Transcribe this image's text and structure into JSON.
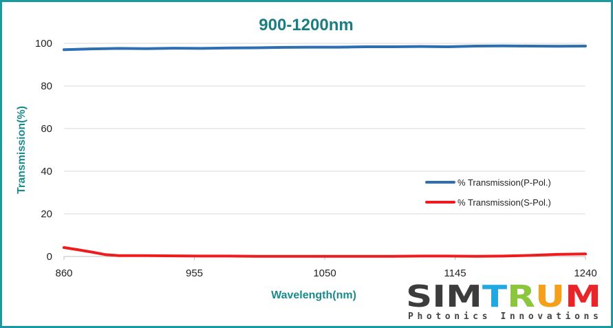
{
  "chart_data": {
    "type": "line",
    "title": "900-1200nm",
    "xlabel": "Wavelength(nm)",
    "ylabel": "Transmission(%)",
    "xlim": [
      860,
      1240
    ],
    "ylim": [
      0,
      100
    ],
    "x_ticks": [
      "860",
      "955",
      "1050",
      "1145",
      "1240"
    ],
    "y_ticks": [
      "0",
      "20",
      "40",
      "60",
      "80",
      "100"
    ],
    "grid": "horizontal",
    "legend_position": "center-right",
    "series": [
      {
        "name": "% Transmission(P-Pol.)",
        "color": "#2e6fb4",
        "points": [
          [
            860,
            97.0
          ],
          [
            880,
            97.4
          ],
          [
            900,
            97.6
          ],
          [
            920,
            97.5
          ],
          [
            940,
            97.7
          ],
          [
            960,
            97.6
          ],
          [
            980,
            97.8
          ],
          [
            1000,
            97.9
          ],
          [
            1020,
            98.1
          ],
          [
            1040,
            98.2
          ],
          [
            1060,
            98.2
          ],
          [
            1080,
            98.4
          ],
          [
            1100,
            98.4
          ],
          [
            1120,
            98.5
          ],
          [
            1140,
            98.4
          ],
          [
            1160,
            98.7
          ],
          [
            1180,
            98.8
          ],
          [
            1200,
            98.7
          ],
          [
            1220,
            98.6
          ],
          [
            1240,
            98.7
          ]
        ]
      },
      {
        "name": "% Transmission(S-Pol.)",
        "color": "#ee1c1c",
        "points": [
          [
            860,
            4.2
          ],
          [
            870,
            3.2
          ],
          [
            880,
            2.1
          ],
          [
            890,
            0.9
          ],
          [
            900,
            0.4
          ],
          [
            920,
            0.4
          ],
          [
            940,
            0.3
          ],
          [
            960,
            0.2
          ],
          [
            980,
            0.2
          ],
          [
            1000,
            0.1
          ],
          [
            1020,
            0.1
          ],
          [
            1040,
            0.1
          ],
          [
            1060,
            0.1
          ],
          [
            1080,
            0.1
          ],
          [
            1100,
            0.1
          ],
          [
            1120,
            0.2
          ],
          [
            1140,
            0.2
          ],
          [
            1160,
            0.1
          ],
          [
            1180,
            0.2
          ],
          [
            1200,
            0.5
          ],
          [
            1220,
            1.0
          ],
          [
            1240,
            1.2
          ]
        ]
      }
    ]
  },
  "logo": {
    "letters": [
      {
        "ch": "S",
        "color": "#3c3c3c"
      },
      {
        "ch": "I",
        "color": "#3c3c3c"
      },
      {
        "ch": "M",
        "color": "#3c3c3c"
      },
      {
        "ch": "T",
        "color": "#21a8e0"
      },
      {
        "ch": "R",
        "color": "#8cc63f"
      },
      {
        "ch": "U",
        "color": "#f5a01a"
      },
      {
        "ch": "M",
        "color": "#e8262a"
      }
    ],
    "tagline": "Photonics Innovations"
  }
}
